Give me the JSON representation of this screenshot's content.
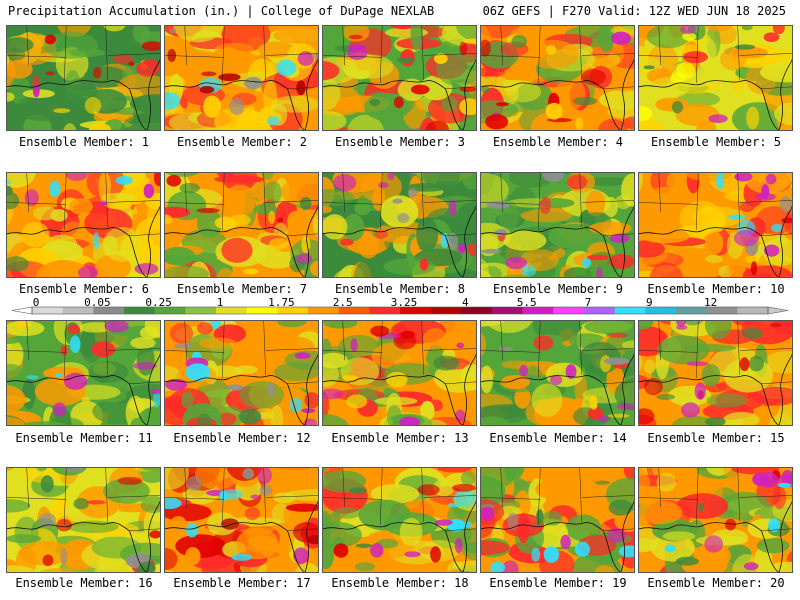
{
  "header": {
    "left_title": "Precipitation Accumulation (in.) | College of DuPage NEXLAB",
    "right_title": "06Z GEFS | F270 Valid: 12Z WED JUN 18 2025"
  },
  "legend": {
    "tick_labels": [
      "0",
      "0.05",
      "0.25",
      "1",
      "1.75",
      "2.5",
      "3.25",
      "4",
      "5.5",
      "7",
      "9",
      "12"
    ],
    "colors": [
      "#d9d9d9",
      "#bdbdbd",
      "#8c8c8c",
      "#3c8a3c",
      "#55a63a",
      "#8bc34a",
      "#e0e020",
      "#ffff00",
      "#ffd200",
      "#ff9900",
      "#ff5a00",
      "#ff2a2a",
      "#e00000",
      "#b40000",
      "#8a0020",
      "#a01070",
      "#d020c0",
      "#ff40ff",
      "#b060ff",
      "#30e0ff",
      "#20c0e0",
      "#60a0a0",
      "#909090",
      "#b8b8b8"
    ]
  },
  "panels": [
    {
      "label": "Ensemble Member: 1",
      "palette": [
        "#3c8a3c",
        "#55a63a",
        "#e0e020",
        "#ff9900"
      ],
      "blobs": [
        "#ff2a2a",
        "#d020c0",
        "#ffd200",
        "#e00000"
      ]
    },
    {
      "label": "Ensemble Member: 2",
      "palette": [
        "#ff9900",
        "#ff2a2a",
        "#e0e020",
        "#ffd200"
      ],
      "blobs": [
        "#d020c0",
        "#30e0ff",
        "#909090",
        "#b40000"
      ]
    },
    {
      "label": "Ensemble Member: 3",
      "palette": [
        "#55a63a",
        "#e0e020",
        "#ff9900",
        "#ff2a2a"
      ],
      "blobs": [
        "#e00000",
        "#d020c0",
        "#3c8a3c",
        "#ffd200"
      ]
    },
    {
      "label": "Ensemble Member: 4",
      "palette": [
        "#ff9900",
        "#e0e020",
        "#ff2a2a",
        "#55a63a"
      ],
      "blobs": [
        "#d020c0",
        "#e00000",
        "#3c8a3c",
        "#ffd200"
      ]
    },
    {
      "label": "Ensemble Member: 5",
      "palette": [
        "#e0e020",
        "#ffd200",
        "#ff9900",
        "#55a63a"
      ],
      "blobs": [
        "#ff2a2a",
        "#3c8a3c",
        "#d020c0",
        "#ffff00"
      ]
    },
    {
      "label": "Ensemble Member: 6",
      "palette": [
        "#ff9900",
        "#ff2a2a",
        "#e0e020",
        "#ffd200"
      ],
      "blobs": [
        "#d020c0",
        "#30e0ff",
        "#e00000",
        "#3c8a3c"
      ]
    },
    {
      "label": "Ensemble Member: 7",
      "palette": [
        "#ff9900",
        "#ff2a2a",
        "#e0e020",
        "#55a63a"
      ],
      "blobs": [
        "#d020c0",
        "#e00000",
        "#3c8a3c",
        "#ffd200"
      ]
    },
    {
      "label": "Ensemble Member: 8",
      "palette": [
        "#3c8a3c",
        "#55a63a",
        "#ff9900",
        "#e0e020"
      ],
      "blobs": [
        "#d020c0",
        "#30e0ff",
        "#909090",
        "#ff2a2a"
      ]
    },
    {
      "label": "Ensemble Member: 9",
      "palette": [
        "#55a63a",
        "#3c8a3c",
        "#ff9900",
        "#e0e020"
      ],
      "blobs": [
        "#d020c0",
        "#30e0ff",
        "#ff2a2a",
        "#909090"
      ]
    },
    {
      "label": "Ensemble Member: 10",
      "palette": [
        "#ff9900",
        "#ff2a2a",
        "#e0e020",
        "#ffd200"
      ],
      "blobs": [
        "#30e0ff",
        "#d020c0",
        "#e00000",
        "#909090"
      ]
    },
    {
      "label": "Ensemble Member: 11",
      "palette": [
        "#55a63a",
        "#3c8a3c",
        "#e0e020",
        "#ff9900"
      ],
      "blobs": [
        "#d020c0",
        "#30e0ff",
        "#ff2a2a",
        "#ffd200"
      ]
    },
    {
      "label": "Ensemble Member: 12",
      "palette": [
        "#ff9900",
        "#ff2a2a",
        "#55a63a",
        "#e0e020"
      ],
      "blobs": [
        "#d020c0",
        "#30e0ff",
        "#909090",
        "#3c8a3c"
      ]
    },
    {
      "label": "Ensemble Member: 13",
      "palette": [
        "#ff9900",
        "#e0e020",
        "#55a63a",
        "#ff2a2a"
      ],
      "blobs": [
        "#d020c0",
        "#e00000",
        "#3c8a3c",
        "#ffd200"
      ]
    },
    {
      "label": "Ensemble Member: 14",
      "palette": [
        "#55a63a",
        "#3c8a3c",
        "#e0e020",
        "#ff9900"
      ],
      "blobs": [
        "#ff2a2a",
        "#909090",
        "#d020c0",
        "#ffd200"
      ]
    },
    {
      "label": "Ensemble Member: 15",
      "palette": [
        "#ff9900",
        "#e0e020",
        "#55a63a",
        "#ff2a2a"
      ],
      "blobs": [
        "#e00000",
        "#d020c0",
        "#3c8a3c",
        "#ffd200"
      ]
    },
    {
      "label": "Ensemble Member: 16",
      "palette": [
        "#e0e020",
        "#ff9900",
        "#55a63a",
        "#ffd200"
      ],
      "blobs": [
        "#ff2a2a",
        "#3c8a3c",
        "#909090",
        "#e00000"
      ]
    },
    {
      "label": "Ensemble Member: 17",
      "palette": [
        "#ff9900",
        "#ff2a2a",
        "#e0e020",
        "#e00000"
      ],
      "blobs": [
        "#d020c0",
        "#30e0ff",
        "#909090",
        "#b40000"
      ]
    },
    {
      "label": "Ensemble Member: 18",
      "palette": [
        "#ff9900",
        "#e0e020",
        "#55a63a",
        "#ff2a2a"
      ],
      "blobs": [
        "#d020c0",
        "#30e0ff",
        "#3c8a3c",
        "#e00000"
      ]
    },
    {
      "label": "Ensemble Member: 19",
      "palette": [
        "#ff9900",
        "#55a63a",
        "#e0e020",
        "#ff2a2a"
      ],
      "blobs": [
        "#d020c0",
        "#30e0ff",
        "#3c8a3c",
        "#909090"
      ]
    },
    {
      "label": "Ensemble Member: 20",
      "palette": [
        "#ff9900",
        "#e0e020",
        "#55a63a",
        "#ff2a2a"
      ],
      "blobs": [
        "#30e0ff",
        "#d020c0",
        "#e00000",
        "#3c8a3c"
      ]
    }
  ]
}
